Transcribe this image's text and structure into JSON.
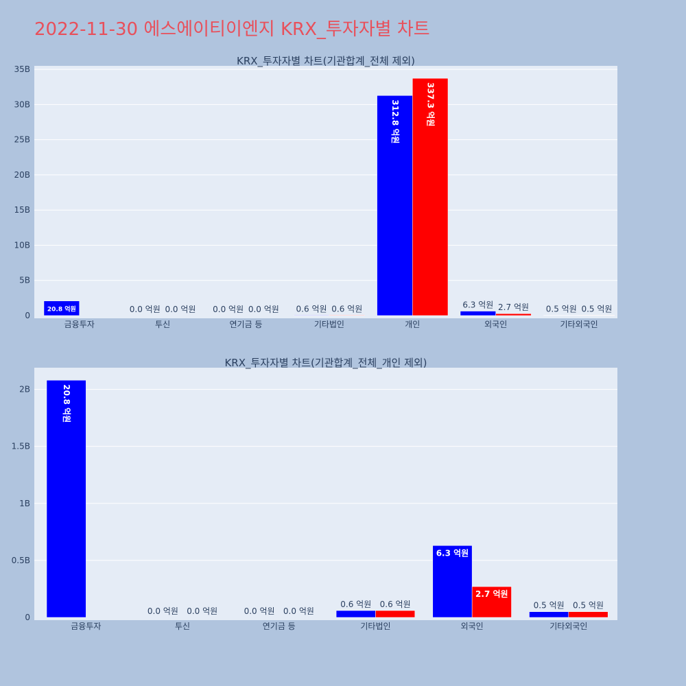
{
  "title": "2022-11-30 에스에이티이엔지 KRX_투자자별 차트",
  "colors": {
    "background": "#b0c4de",
    "plot_bg": "#e5ecf6",
    "series1": "#0000ff",
    "series2": "#ff0000",
    "title": "#e8505b"
  },
  "chart_data": [
    {
      "type": "bar",
      "title": "KRX_투자자별 차트(기관합계_전체 제외)",
      "categories": [
        "금융투자",
        "투신",
        "연기금 등",
        "기타법인",
        "개인",
        "외국인",
        "기타외국인"
      ],
      "series": [
        {
          "values": [
            2080000000,
            0,
            0,
            60000000,
            31280000000,
            630000000,
            50000000
          ],
          "labels": [
            "20.8 억원",
            "0.0 억원",
            "0.0 억원",
            "0.6 억원",
            "312.8 억원",
            "6.3 억원",
            "0.5 억원"
          ]
        },
        {
          "values": [
            0,
            0,
            0,
            60000000,
            33730000000,
            270000000,
            50000000
          ],
          "labels": [
            "",
            "0.0 억원",
            "0.0 억원",
            "0.6 억원",
            "337.3 억원",
            "2.7 억원",
            "0.5 억원"
          ]
        }
      ],
      "yticks": [
        0,
        5000000000,
        10000000000,
        15000000000,
        20000000000,
        25000000000,
        30000000000,
        35000000000
      ],
      "ytick_labels": [
        "0",
        "5B",
        "10B",
        "15B",
        "20B",
        "25B",
        "30B",
        "35B"
      ],
      "ylim": [
        0,
        35500000000
      ],
      "grid": true
    },
    {
      "type": "bar",
      "title": "KRX_투자자별 차트(기관합계_전체_개인 제외)",
      "categories": [
        "금융투자",
        "투신",
        "연기금 등",
        "기타법인",
        "외국인",
        "기타외국인"
      ],
      "series": [
        {
          "values": [
            2080000000,
            0,
            0,
            60000000,
            630000000,
            50000000
          ],
          "labels": [
            "20.8 억원",
            "0.0 억원",
            "0.0 억원",
            "0.6 억원",
            "6.3 억원",
            "0.5 억원"
          ]
        },
        {
          "values": [
            0,
            0,
            0,
            60000000,
            270000000,
            50000000
          ],
          "labels": [
            "",
            "0.0 억원",
            "0.0 억원",
            "0.6 억원",
            "2.7 억원",
            "0.5 억원"
          ]
        }
      ],
      "yticks": [
        0,
        500000000,
        1000000000,
        1500000000,
        2000000000
      ],
      "ytick_labels": [
        "0",
        "0.5B",
        "1B",
        "1.5B",
        "2B"
      ],
      "ylim": [
        0,
        2190000000
      ],
      "grid": true
    }
  ]
}
